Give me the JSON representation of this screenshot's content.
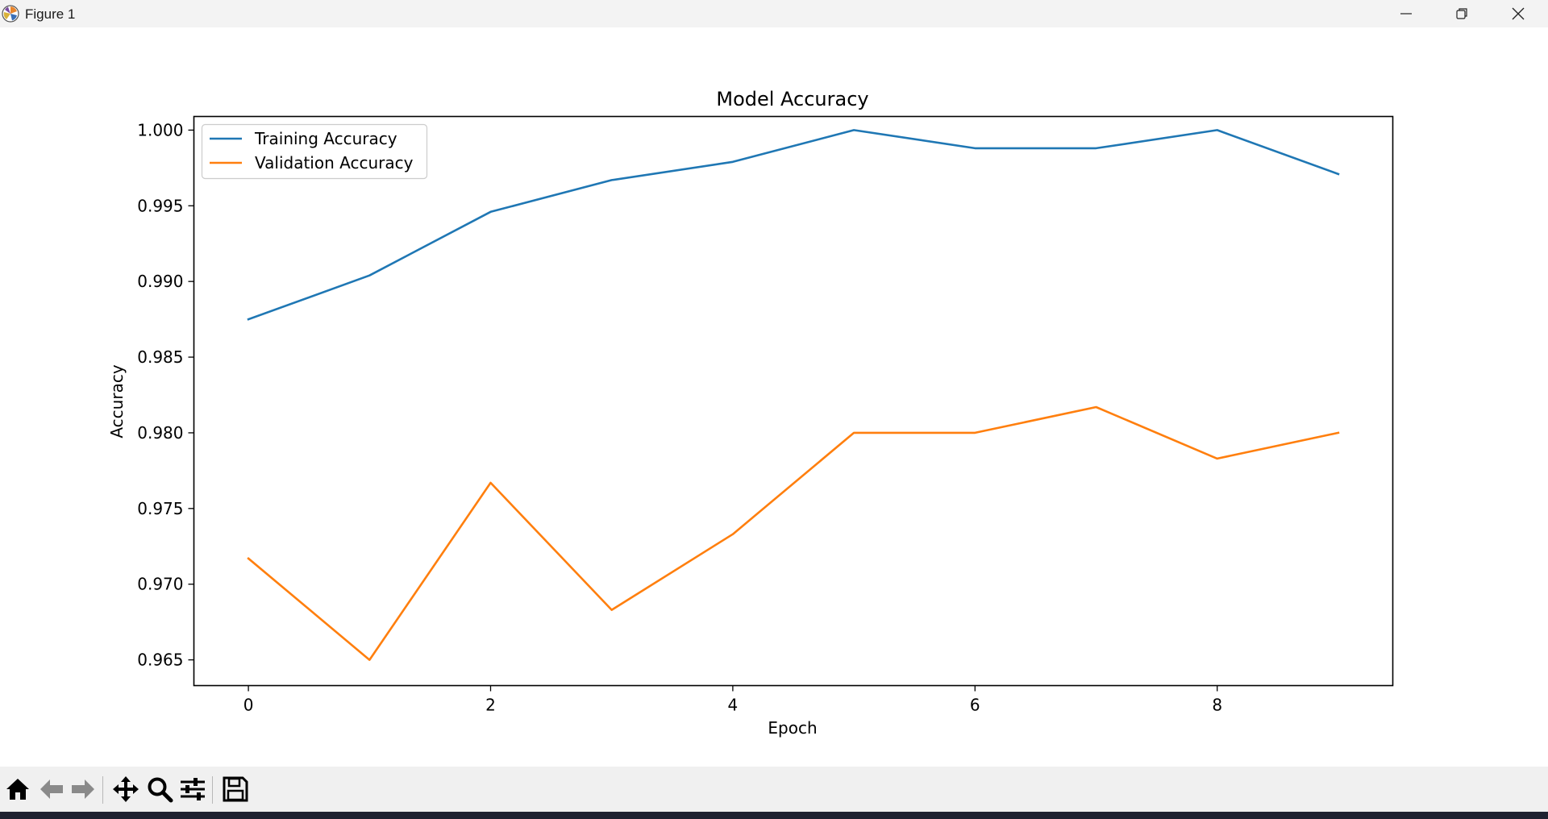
{
  "window": {
    "title": "Figure 1",
    "icons": {
      "app": "matplotlib-logo-icon",
      "minimize": "minimize-icon",
      "restore": "restore-icon",
      "close": "close-icon"
    }
  },
  "toolbar": {
    "tools": [
      {
        "name": "home-icon"
      },
      {
        "name": "back-arrow-icon"
      },
      {
        "name": "forward-arrow-icon"
      },
      {
        "name": "pan-icon"
      },
      {
        "name": "zoom-icon"
      },
      {
        "name": "configure-subplots-icon"
      },
      {
        "name": "save-icon"
      }
    ]
  },
  "chart_data": {
    "type": "line",
    "title": "Model Accuracy",
    "xlabel": "Epoch",
    "ylabel": "Accuracy",
    "x": [
      0,
      1,
      2,
      3,
      4,
      5,
      6,
      7,
      8,
      9
    ],
    "xlim": [
      -0.45,
      9.45
    ],
    "ylim": [
      0.9633,
      1.0009
    ],
    "xticks": [
      0,
      2,
      4,
      6,
      8
    ],
    "yticks": [
      0.965,
      0.97,
      0.975,
      0.98,
      0.985,
      0.99,
      0.995,
      1.0
    ],
    "xtick_labels": [
      "0",
      "2",
      "4",
      "6",
      "8"
    ],
    "ytick_labels": [
      "0.965",
      "0.970",
      "0.975",
      "0.980",
      "0.985",
      "0.990",
      "0.995",
      "1.000"
    ],
    "grid": false,
    "legend_position": "upper-left",
    "series": [
      {
        "name": "Training Accuracy",
        "color": "#1f77b4",
        "values": [
          0.9875,
          0.9904,
          0.9946,
          0.9967,
          0.9979,
          1.0,
          0.9988,
          0.9988,
          1.0,
          0.9971
        ]
      },
      {
        "name": "Validation Accuracy",
        "color": "#ff7f0e",
        "values": [
          0.9717,
          0.965,
          0.9767,
          0.9683,
          0.9733,
          0.98,
          0.98,
          0.9817,
          0.9783,
          0.98
        ]
      }
    ]
  }
}
